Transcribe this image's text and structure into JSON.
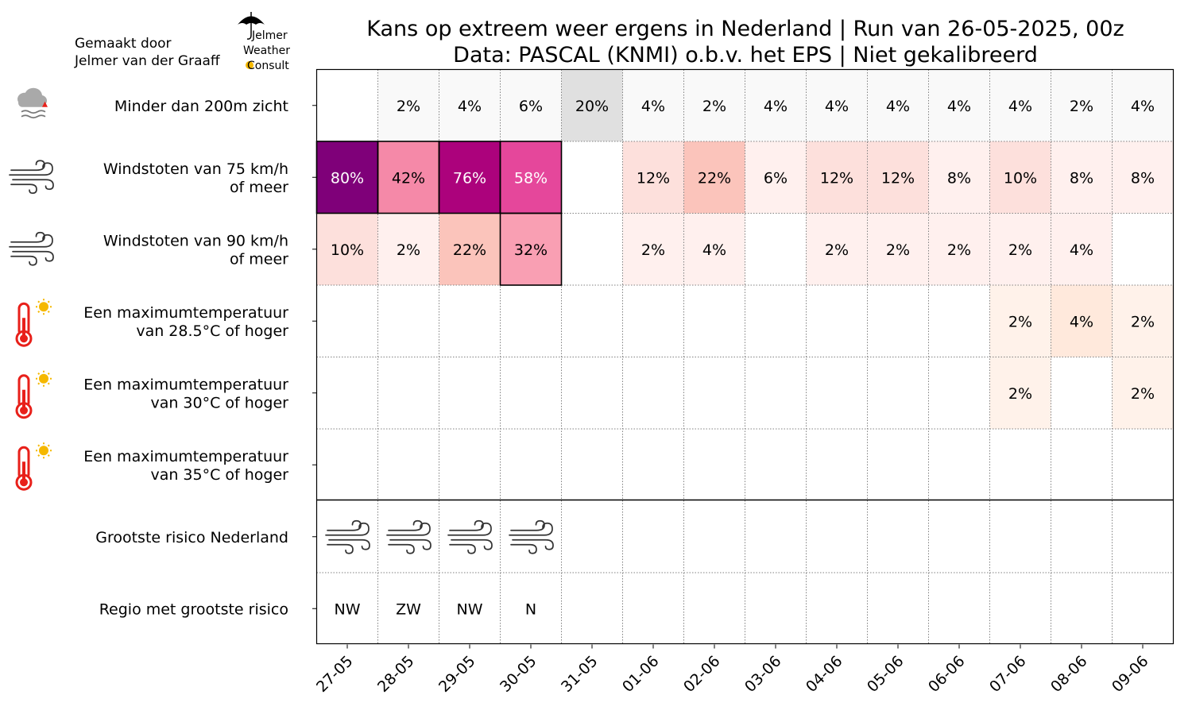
{
  "credit": {
    "line1": "Gemaakt door",
    "line2": "Jelmer van der Graaff"
  },
  "logo": {
    "line1": "Jelmer",
    "line2": "Weather",
    "line3": "Consult"
  },
  "chart_data": {
    "type": "heatmap",
    "title_line1": "Kans op extreem weer ergens in Nederland | Run van 26-05-2025, 00z",
    "title_line2": "Data: PASCAL (KNMI) o.b.v. het EPS | Niet gekalibreerd",
    "dates": [
      "27-05",
      "28-05",
      "29-05",
      "30-05",
      "31-05",
      "01-06",
      "02-06",
      "03-06",
      "04-06",
      "05-06",
      "06-06",
      "07-06",
      "08-06",
      "09-06"
    ],
    "rows": [
      {
        "label_lines": [
          "Minder dan 200m zicht"
        ],
        "icon": "fog-icon",
        "colormap": "grey",
        "values": [
          null,
          2,
          4,
          6,
          20,
          4,
          2,
          4,
          4,
          4,
          4,
          4,
          2,
          4
        ],
        "outlined": []
      },
      {
        "label_lines": [
          "Windstoten van 75 km/h",
          "of meer"
        ],
        "icon": "wind-icon",
        "colormap": "pink",
        "values": [
          80,
          42,
          76,
          58,
          null,
          12,
          22,
          6,
          12,
          12,
          8,
          10,
          8,
          8
        ],
        "outlined": [
          0,
          1,
          2,
          3
        ]
      },
      {
        "label_lines": [
          "Windstoten van 90 km/h",
          "of meer"
        ],
        "icon": "wind-icon",
        "colormap": "pink",
        "values": [
          10,
          2,
          22,
          32,
          null,
          2,
          4,
          null,
          2,
          2,
          2,
          2,
          4,
          null
        ],
        "outlined": [
          3
        ]
      },
      {
        "label_lines": [
          "Een maximumtemperatuur",
          "van 28.5°C of hoger"
        ],
        "icon": "thermometer-sun-icon",
        "colormap": "orange",
        "values": [
          null,
          null,
          null,
          null,
          null,
          null,
          null,
          null,
          null,
          null,
          null,
          2,
          4,
          2
        ],
        "outlined": []
      },
      {
        "label_lines": [
          "Een maximumtemperatuur",
          "van 30°C of hoger"
        ],
        "icon": "thermometer-sun-icon",
        "colormap": "orange",
        "values": [
          null,
          null,
          null,
          null,
          null,
          null,
          null,
          null,
          null,
          null,
          null,
          2,
          null,
          2
        ],
        "outlined": []
      },
      {
        "label_lines": [
          "Een maximumtemperatuur",
          "van 35°C of hoger"
        ],
        "icon": "thermometer-sun-icon",
        "colormap": "orange",
        "values": [
          null,
          null,
          null,
          null,
          null,
          null,
          null,
          null,
          null,
          null,
          null,
          null,
          null,
          null
        ],
        "outlined": []
      }
    ],
    "summary": {
      "risk_label": "Grootste risico Nederland",
      "region_label": "Regio met grootste risico",
      "risk_icons": [
        "wind-icon",
        "wind-icon",
        "wind-icon",
        "wind-icon",
        null,
        null,
        null,
        null,
        null,
        null,
        null,
        null,
        null,
        null
      ],
      "regions": [
        "NW",
        "ZW",
        "NW",
        "N",
        "",
        "",
        "",
        "",
        "",
        "",
        "",
        "",
        "",
        ""
      ]
    },
    "value_suffix": "%",
    "value_range": [
      0,
      100
    ]
  },
  "colors": {
    "grey": [
      "#f9f9f9",
      "#e0e0e0"
    ],
    "pink": [
      "#fff0ee",
      "#fde0dc",
      "#fbc4bb",
      "#f99fb3",
      "#f589a8",
      "#e5479b",
      "#ac027c",
      "#7f0079"
    ],
    "orange": [
      "#fff2ea",
      "#ffe9dc"
    ],
    "grid": "#808080"
  }
}
